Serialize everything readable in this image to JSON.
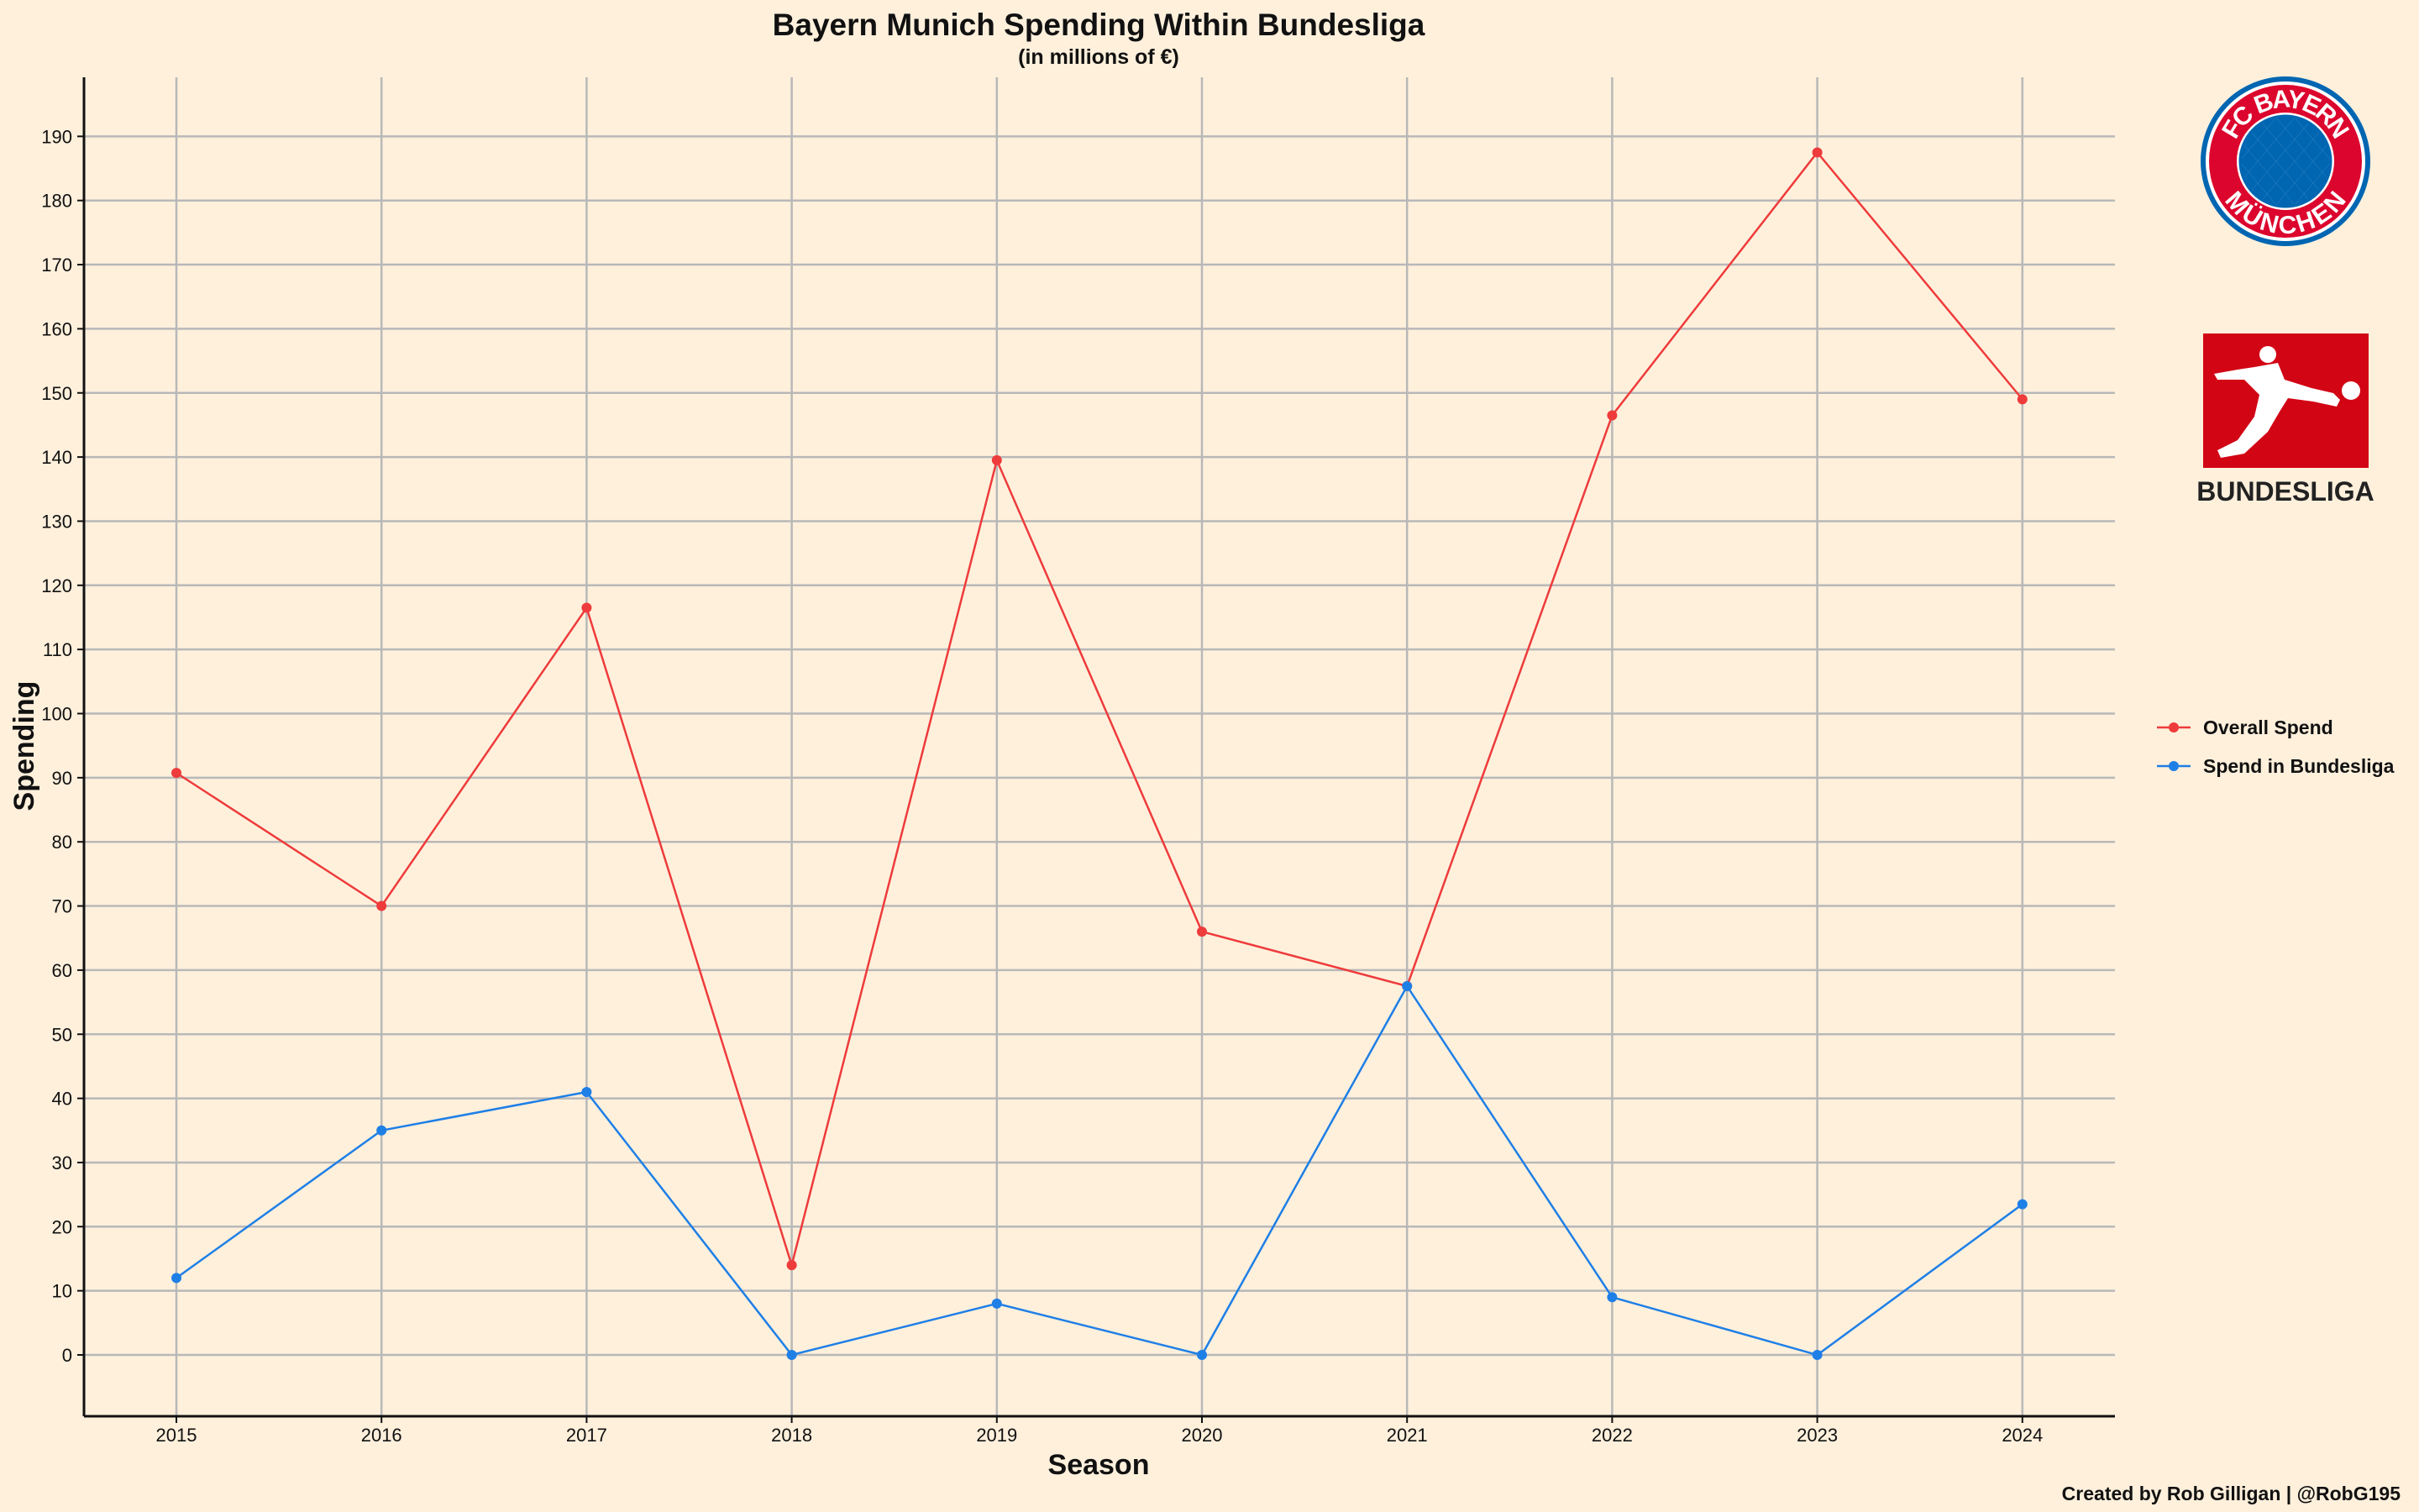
{
  "chart_data": {
    "type": "line",
    "title": "Bayern Munich Spending Within Bundesliga",
    "subtitle": "(in millions of €)",
    "xlabel": "Season",
    "ylabel": "Spending",
    "x": [
      2015,
      2016,
      2017,
      2018,
      2019,
      2020,
      2021,
      2022,
      2023,
      2024
    ],
    "ylim": [
      -10,
      200
    ],
    "yticks": [
      0,
      10,
      20,
      30,
      40,
      50,
      60,
      70,
      80,
      90,
      100,
      110,
      120,
      130,
      140,
      150,
      160,
      170,
      180,
      190
    ],
    "grid": true,
    "legend_position": "right",
    "series": [
      {
        "name": "Overall Spend",
        "color": "#EE3B3B",
        "values": [
          90.75,
          70,
          116.5,
          14,
          139.5,
          66,
          57.5,
          146.5,
          187.5,
          149
        ]
      },
      {
        "name": "Spend in Bundesliga",
        "color": "#1E7FE6",
        "values": [
          12,
          35,
          41,
          0,
          8,
          0,
          57.5,
          9,
          0,
          23.5
        ]
      }
    ]
  },
  "credit": "Created by Rob Gilligan | @RobG195",
  "logos": {
    "bayern": {
      "top_text": "FC BAYERN",
      "bottom_text": "MÜNCHEN",
      "colors": [
        "#DC052D",
        "#0066B2"
      ]
    },
    "bundesliga": {
      "wordmark": "BUNDESLIGA",
      "color": "#D20515"
    }
  }
}
